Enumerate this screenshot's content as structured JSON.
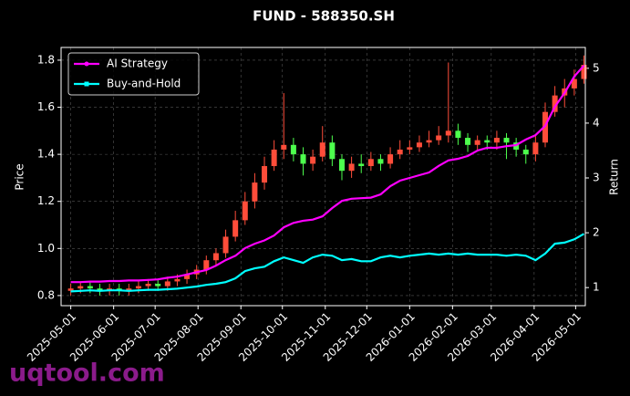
{
  "chart_data": {
    "type": "candlestick",
    "title": "FUND - 588350.SH",
    "ylabel": "Price",
    "y2label": "Return",
    "watermark": "uqtool.com",
    "x": [
      "2025-05-01",
      "2025-05-08",
      "2025-05-15",
      "2025-05-22",
      "2025-05-29",
      "2025-06-05",
      "2025-06-12",
      "2025-06-19",
      "2025-06-26",
      "2025-07-03",
      "2025-07-10",
      "2025-07-17",
      "2025-07-24",
      "2025-07-31",
      "2025-08-07",
      "2025-08-14",
      "2025-08-21",
      "2025-08-28",
      "2025-09-04",
      "2025-09-11",
      "2025-09-18",
      "2025-09-25",
      "2025-10-02",
      "2025-10-09",
      "2025-10-16",
      "2025-10-23",
      "2025-10-30",
      "2025-11-06",
      "2025-11-13",
      "2025-11-20",
      "2025-11-27",
      "2025-12-04",
      "2025-12-11",
      "2025-12-18",
      "2025-12-25",
      "2026-01-01",
      "2026-01-08",
      "2026-01-15",
      "2026-01-22",
      "2026-01-29",
      "2026-02-05",
      "2026-02-12",
      "2026-02-19",
      "2026-02-26",
      "2026-03-05",
      "2026-03-12",
      "2026-03-19",
      "2026-03-26",
      "2026-04-02",
      "2026-04-09",
      "2026-04-16",
      "2026-04-23",
      "2026-04-30",
      "2026-05-07"
    ],
    "open": [
      0.82,
      0.83,
      0.84,
      0.83,
      0.82,
      0.83,
      0.82,
      0.83,
      0.84,
      0.85,
      0.84,
      0.86,
      0.87,
      0.89,
      0.91,
      0.95,
      0.98,
      1.05,
      1.12,
      1.2,
      1.28,
      1.35,
      1.42,
      1.44,
      1.4,
      1.36,
      1.39,
      1.45,
      1.38,
      1.33,
      1.36,
      1.35,
      1.38,
      1.36,
      1.4,
      1.42,
      1.43,
      1.45,
      1.46,
      1.48,
      1.5,
      1.47,
      1.44,
      1.46,
      1.45,
      1.47,
      1.45,
      1.42,
      1.4,
      1.45,
      1.58,
      1.65,
      1.68,
      1.72
    ],
    "high": [
      0.85,
      0.86,
      0.86,
      0.85,
      0.85,
      0.85,
      0.85,
      0.86,
      0.87,
      0.87,
      0.88,
      0.89,
      0.91,
      0.93,
      0.97,
      1.0,
      1.08,
      1.16,
      1.24,
      1.32,
      1.39,
      1.46,
      1.66,
      1.47,
      1.43,
      1.42,
      1.52,
      1.48,
      1.4,
      1.39,
      1.4,
      1.41,
      1.4,
      1.43,
      1.46,
      1.46,
      1.48,
      1.5,
      1.52,
      1.79,
      1.53,
      1.49,
      1.48,
      1.48,
      1.5,
      1.49,
      1.47,
      1.44,
      1.48,
      1.62,
      1.69,
      1.72,
      1.76,
      1.82
    ],
    "low": [
      0.8,
      0.81,
      0.81,
      0.8,
      0.8,
      0.8,
      0.8,
      0.81,
      0.82,
      0.82,
      0.82,
      0.84,
      0.85,
      0.87,
      0.89,
      0.93,
      0.96,
      1.03,
      1.1,
      1.17,
      1.25,
      1.33,
      1.38,
      1.37,
      1.31,
      1.33,
      1.37,
      1.35,
      1.29,
      1.3,
      1.32,
      1.33,
      1.33,
      1.34,
      1.38,
      1.4,
      1.41,
      1.43,
      1.44,
      1.45,
      1.44,
      1.41,
      1.42,
      1.42,
      1.42,
      1.38,
      1.39,
      1.36,
      1.37,
      1.43,
      1.56,
      1.6,
      1.65,
      1.7
    ],
    "close": [
      0.83,
      0.84,
      0.83,
      0.82,
      0.83,
      0.82,
      0.83,
      0.84,
      0.85,
      0.84,
      0.86,
      0.87,
      0.89,
      0.91,
      0.95,
      0.98,
      1.05,
      1.12,
      1.2,
      1.28,
      1.35,
      1.42,
      1.44,
      1.4,
      1.36,
      1.39,
      1.45,
      1.38,
      1.33,
      1.36,
      1.35,
      1.38,
      1.36,
      1.4,
      1.42,
      1.43,
      1.45,
      1.46,
      1.48,
      1.5,
      1.47,
      1.44,
      1.46,
      1.45,
      1.47,
      1.45,
      1.42,
      1.4,
      1.45,
      1.58,
      1.65,
      1.68,
      1.72,
      1.78
    ],
    "up_color": "#ff4d3a",
    "down_color": "#4dff4d",
    "series": [
      {
        "name": "AI Strategy",
        "color": "#ff00ff",
        "axis": "y2",
        "marker": "circle",
        "values": [
          1.1,
          1.1,
          1.11,
          1.11,
          1.12,
          1.12,
          1.13,
          1.13,
          1.14,
          1.15,
          1.18,
          1.2,
          1.24,
          1.28,
          1.32,
          1.4,
          1.5,
          1.58,
          1.72,
          1.8,
          1.86,
          1.95,
          2.1,
          2.18,
          2.22,
          2.24,
          2.3,
          2.45,
          2.58,
          2.62,
          2.63,
          2.64,
          2.7,
          2.85,
          2.95,
          3.0,
          3.05,
          3.1,
          3.22,
          3.32,
          3.35,
          3.4,
          3.5,
          3.55,
          3.55,
          3.58,
          3.6,
          3.7,
          3.78,
          3.95,
          4.3,
          4.55,
          4.85,
          5.05
        ]
      },
      {
        "name": "Buy-and-Hold",
        "color": "#00ffff",
        "axis": "y2",
        "marker": "square",
        "values": [
          0.93,
          0.94,
          0.95,
          0.94,
          0.95,
          0.95,
          0.94,
          0.95,
          0.96,
          0.96,
          0.97,
          0.98,
          1.0,
          1.02,
          1.05,
          1.07,
          1.1,
          1.17,
          1.3,
          1.35,
          1.38,
          1.48,
          1.55,
          1.5,
          1.45,
          1.55,
          1.6,
          1.58,
          1.5,
          1.52,
          1.48,
          1.48,
          1.55,
          1.58,
          1.55,
          1.58,
          1.6,
          1.62,
          1.6,
          1.62,
          1.6,
          1.62,
          1.6,
          1.6,
          1.6,
          1.58,
          1.6,
          1.58,
          1.5,
          1.62,
          1.8,
          1.82,
          1.88,
          1.98
        ]
      }
    ],
    "xlim": [
      "2025-04-24",
      "2026-05-08"
    ],
    "xticks": [
      "2025-05-01",
      "2025-06-01",
      "2025-07-01",
      "2025-08-01",
      "2025-09-01",
      "2025-10-01",
      "2025-11-01",
      "2025-12-01",
      "2026-01-01",
      "2026-02-01",
      "2026-03-01",
      "2026-04-01",
      "2026-05-01"
    ],
    "ylim": [
      0.757,
      1.854
    ],
    "yticks": [
      0.8,
      {
        "value": 1.0,
        "label": "1.0"
      },
      1.2,
      1.4,
      1.6,
      1.8
    ],
    "y2lim": [
      0.67,
      5.38
    ],
    "y2ticks": [
      1,
      2,
      3,
      4,
      5
    ],
    "grid": true,
    "legend": "upper left"
  }
}
